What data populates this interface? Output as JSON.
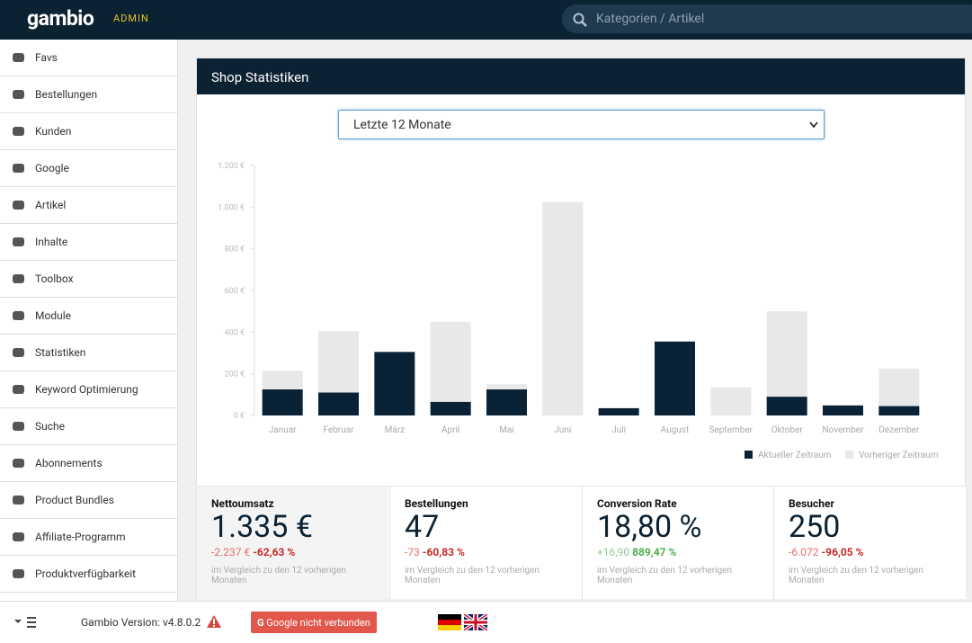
{
  "header": {
    "logo": "gambio",
    "admin": "ADMIN",
    "search_placeholder": "Kategorien / Artikel"
  },
  "sidebar": {
    "items": [
      "Favs",
      "Bestellungen",
      "Kunden",
      "Google",
      "Artikel",
      "Inhalte",
      "Toolbox",
      "Module",
      "Statistiken",
      "Keyword Optimierung",
      "Suche",
      "Abonnements",
      "Product Bundles",
      "Affiliate-Programm",
      "Produktverfügbarkeit"
    ]
  },
  "panel": {
    "title": "Shop Statistiken",
    "select": "Letzte 12 Monate"
  },
  "chart_data": {
    "type": "bar",
    "categories": [
      "Januar",
      "Februar",
      "März",
      "April",
      "Mai",
      "Juni",
      "Juli",
      "August",
      "September",
      "Oktober",
      "November",
      "Dezember"
    ],
    "series": [
      {
        "name": "Aktueller Zeitraum",
        "color": "#0a2236",
        "values": [
          125,
          110,
          305,
          65,
          125,
          0,
          35,
          355,
          0,
          90,
          48,
          45
        ]
      },
      {
        "name": "Vorheriger Zeitraum",
        "color": "#e8e8e8",
        "values": [
          215,
          405,
          0,
          450,
          150,
          1025,
          0,
          0,
          135,
          500,
          50,
          225
        ]
      }
    ],
    "ylim": [
      0,
      1200
    ],
    "yticks": [
      {
        "value": 0,
        "label": "0 €"
      },
      {
        "value": 200,
        "label": "200 €"
      },
      {
        "value": 400,
        "label": "400 €"
      },
      {
        "value": 600,
        "label": "600 €"
      },
      {
        "value": 800,
        "label": "800 €"
      },
      {
        "value": 1000,
        "label": "1.000 €"
      },
      {
        "value": 1200,
        "label": "1.200 €"
      }
    ],
    "legend": "bottom-right"
  },
  "stats": [
    {
      "title": "Nettoumsatz",
      "value": "1.335 €",
      "change": "-2.237 €",
      "percent": "-62,63 %",
      "note": "im Vergleich zu den 12 vorherigen Monaten"
    },
    {
      "title": "Bestellungen",
      "value": "47",
      "change": "-73",
      "percent": "-60,83 %",
      "note": "im Vergleich zu den 12 vorherigen Monaten"
    },
    {
      "title": "Conversion Rate",
      "value": "18,80 %",
      "change": "+16,90",
      "percent": "889,47 %",
      "note": "im Vergleich zu den 12 vorherigen Monaten"
    },
    {
      "title": "Besucher",
      "value": "250",
      "change": "-6.072",
      "percent": "-96,05 %",
      "note": "im Vergleich zu den 12 vorherigen Monaten"
    }
  ],
  "footer": {
    "version": "Gambio Version: v4.8.0.2",
    "button": "Google nicht verbunden"
  }
}
